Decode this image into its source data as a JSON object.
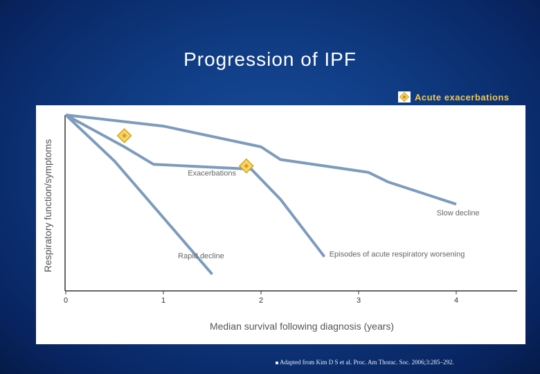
{
  "slide": {
    "title": "Progression of IPF",
    "source_note": "Adapted from Kim D S et al. Proc. Am Thorac. Soc. 2006;3:285–292."
  },
  "legend": {
    "label": "Acute exacerbations",
    "marker_icon": "diamond-icon",
    "marker_color": "#f2c94c"
  },
  "colors": {
    "line": "#7d9bbd",
    "marker_fill": "#f5d56b",
    "marker_stroke": "#d8a21a",
    "axis": "#333333",
    "label_text": "#555555",
    "legend_text": "#f2c94c"
  },
  "chart_data": {
    "type": "line",
    "xlabel": "Median survival following diagnosis (years)",
    "ylabel": "Respiratory function/symptoms",
    "xlim": [
      0,
      4.6
    ],
    "ylim": [
      0,
      1
    ],
    "x_ticks": [
      "0",
      "1",
      "2",
      "3",
      "4"
    ],
    "grid": false,
    "series": [
      {
        "name": "Slow decline",
        "points": [
          [
            0,
            1.0
          ],
          [
            1.0,
            0.93
          ],
          [
            2.0,
            0.8
          ],
          [
            2.2,
            0.72
          ],
          [
            3.1,
            0.64
          ],
          [
            3.3,
            0.58
          ],
          [
            4.0,
            0.44
          ]
        ]
      },
      {
        "name": "Episodes of acute respiratory worsening",
        "points": [
          [
            0,
            1.0
          ],
          [
            0.6,
            0.8
          ],
          [
            0.9,
            0.69
          ],
          [
            1.9,
            0.66
          ],
          [
            2.2,
            0.47
          ],
          [
            2.65,
            0.11
          ]
        ]
      },
      {
        "name": "Rapid decline",
        "points": [
          [
            0,
            1.0
          ],
          [
            0.5,
            0.71
          ],
          [
            1.5,
            0.0
          ]
        ]
      }
    ],
    "curve_labels": [
      {
        "text": "Exacerbations",
        "x": 1.25,
        "y": 0.62
      },
      {
        "text": "Slow decline",
        "x": 3.8,
        "y": 0.37
      },
      {
        "text": "Episodes of acute respiratory worsening",
        "x": 2.7,
        "y": 0.11
      },
      {
        "text": "Rapid decline",
        "x": 1.15,
        "y": 0.1
      }
    ],
    "exacerbation_markers": [
      {
        "x": 0.6,
        "y": 0.87
      },
      {
        "x": 1.85,
        "y": 0.68
      }
    ]
  }
}
